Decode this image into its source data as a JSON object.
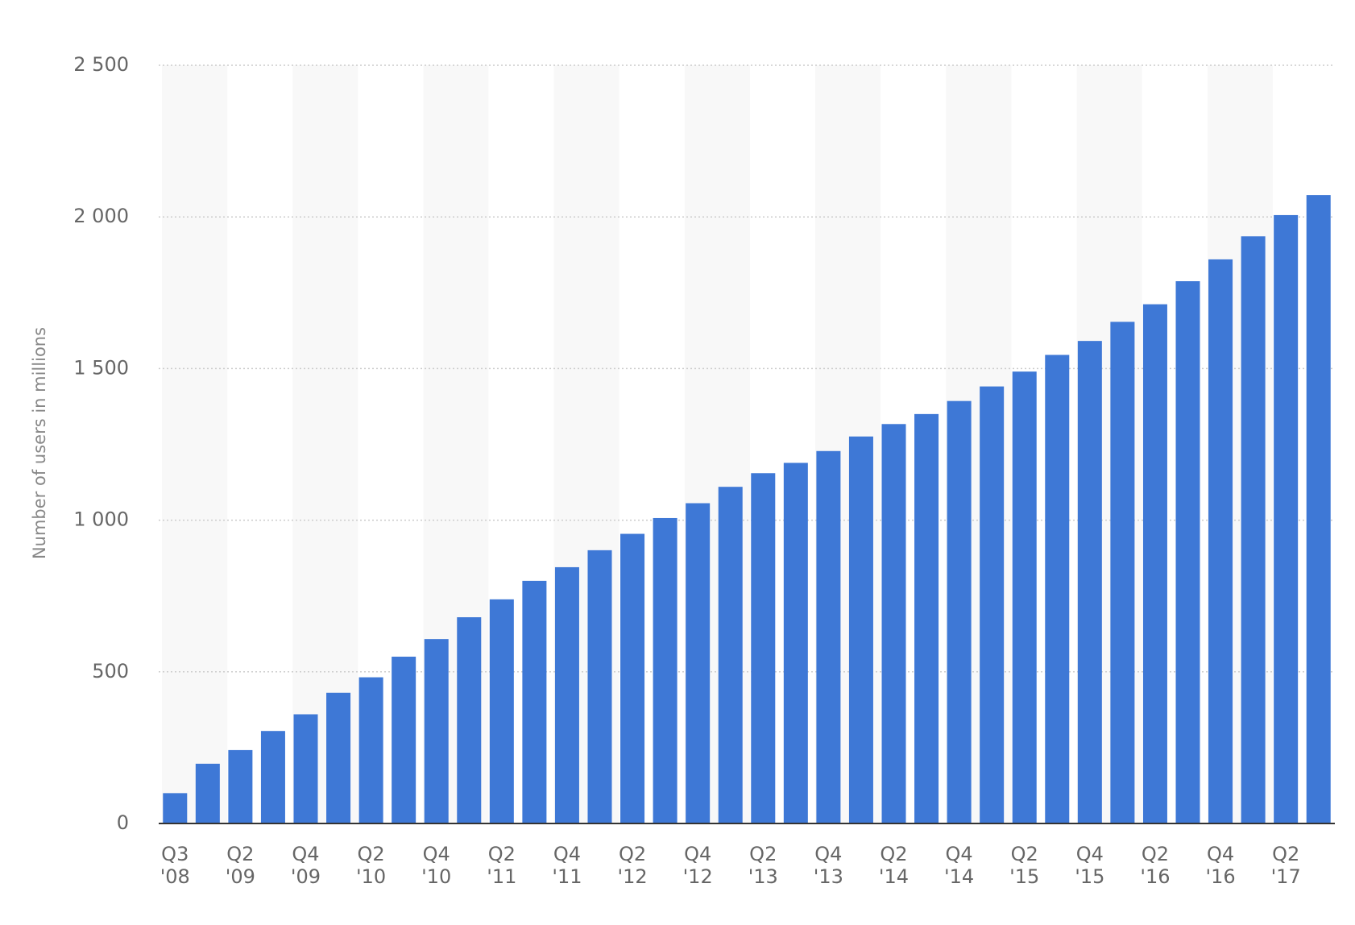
{
  "chart_data": {
    "type": "bar",
    "y_label": "Number of users in millions",
    "categories": [
      "Q3 '08",
      null,
      "Q2 '09",
      null,
      "Q4 '09",
      null,
      "Q2 '10",
      null,
      "Q4 '10",
      null,
      "Q2 '11",
      null,
      "Q4 '11",
      null,
      "Q2 '12",
      null,
      "Q4 '12",
      null,
      "Q2 '13",
      null,
      "Q4 '13",
      null,
      "Q2 '14",
      null,
      "Q4 '14",
      null,
      "Q2 '15",
      null,
      "Q4 '15",
      null,
      "Q2 '16",
      null,
      "Q4 '16",
      null,
      "Q2 '17",
      null
    ],
    "values": [
      100,
      197,
      242,
      305,
      360,
      431,
      482,
      550,
      608,
      680,
      739,
      800,
      845,
      901,
      955,
      1007,
      1056,
      1110,
      1155,
      1189,
      1228,
      1276,
      1317,
      1350,
      1393,
      1441,
      1490,
      1545,
      1591,
      1654,
      1712,
      1788,
      1860,
      1936,
      2006,
      2072
    ],
    "color": "#3e78d6",
    "ylim": [
      0,
      2500
    ],
    "yticks": [
      0,
      500,
      {
        "value": 1000,
        "label": "1 000"
      },
      {
        "value": 1500,
        "label": "1 500"
      },
      {
        "value": 2000,
        "label": "2 000"
      },
      {
        "value": 2500,
        "label": "2 500"
      }
    ],
    "grid": true
  }
}
